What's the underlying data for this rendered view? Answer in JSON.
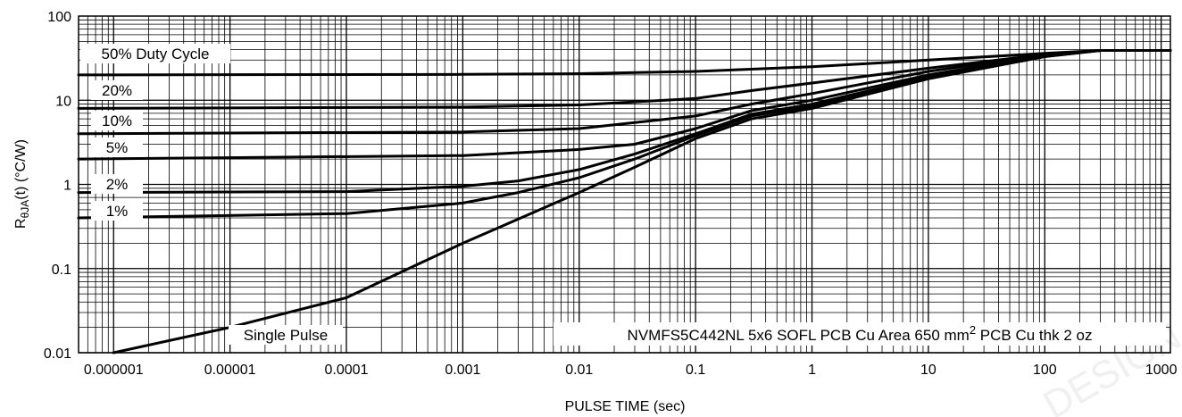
{
  "chart_data": {
    "type": "line",
    "title": "",
    "xlabel": "PULSE TIME (sec)",
    "ylabel_main": "R",
    "ylabel_sub": "θJA",
    "ylabel_rest": "(t) (°C/W)",
    "x_scale": "log",
    "y_scale": "log",
    "xlim": [
      5e-07,
      1200
    ],
    "ylim": [
      0.01,
      100
    ],
    "grid": true,
    "x_ticks": [
      {
        "value": 1e-06,
        "label": "0.000001"
      },
      {
        "value": 1e-05,
        "label": "0.00001"
      },
      {
        "value": 0.0001,
        "label": "0.0001"
      },
      {
        "value": 0.001,
        "label": "0.001"
      },
      {
        "value": 0.01,
        "label": "0.01"
      },
      {
        "value": 0.1,
        "label": "0.1"
      },
      {
        "value": 1,
        "label": "1"
      },
      {
        "value": 10,
        "label": "10"
      },
      {
        "value": 100,
        "label": "100"
      },
      {
        "value": 1000,
        "label": "1000"
      }
    ],
    "y_ticks": [
      {
        "value": 0.01,
        "label": "0.01"
      },
      {
        "value": 0.1,
        "label": "0.1"
      },
      {
        "value": 1,
        "label": "1"
      },
      {
        "value": 10,
        "label": "10"
      },
      {
        "value": 100,
        "label": "100"
      }
    ],
    "series": [
      {
        "name": "50% Duty Cycle",
        "points": [
          [
            5e-07,
            20
          ],
          [
            0.001,
            20.3
          ],
          [
            0.01,
            20.7
          ],
          [
            0.1,
            22
          ],
          [
            1,
            25
          ],
          [
            10,
            30
          ],
          [
            100,
            36
          ],
          [
            300,
            39
          ],
          [
            1200,
            39
          ]
        ]
      },
      {
        "name": "20%",
        "points": [
          [
            5e-07,
            8
          ],
          [
            0.001,
            8.3
          ],
          [
            0.01,
            8.8
          ],
          [
            0.1,
            10.5
          ],
          [
            0.3,
            13
          ],
          [
            1,
            16
          ],
          [
            10,
            24
          ],
          [
            100,
            35
          ],
          [
            300,
            39
          ],
          [
            1200,
            39
          ]
        ]
      },
      {
        "name": "10%",
        "points": [
          [
            5e-07,
            4
          ],
          [
            0.001,
            4.2
          ],
          [
            0.01,
            4.6
          ],
          [
            0.1,
            6.5
          ],
          [
            0.3,
            9
          ],
          [
            1,
            12
          ],
          [
            10,
            22
          ],
          [
            100,
            35
          ],
          [
            300,
            39
          ],
          [
            1200,
            39
          ]
        ]
      },
      {
        "name": "5%",
        "points": [
          [
            5e-07,
            2
          ],
          [
            0.001,
            2.2
          ],
          [
            0.01,
            2.6
          ],
          [
            0.03,
            3
          ],
          [
            0.1,
            4.6
          ],
          [
            0.3,
            7.5
          ],
          [
            1,
            10
          ],
          [
            10,
            20
          ],
          [
            100,
            34
          ],
          [
            300,
            39
          ],
          [
            1200,
            39
          ]
        ]
      },
      {
        "name": "2%",
        "points": [
          [
            5e-07,
            0.8
          ],
          [
            0.0001,
            0.82
          ],
          [
            0.001,
            0.95
          ],
          [
            0.003,
            1.1
          ],
          [
            0.01,
            1.5
          ],
          [
            0.03,
            2.3
          ],
          [
            0.1,
            4
          ],
          [
            0.3,
            6.8
          ],
          [
            1,
            9
          ],
          [
            10,
            19
          ],
          [
            100,
            34
          ],
          [
            300,
            39
          ],
          [
            1200,
            39
          ]
        ]
      },
      {
        "name": "1%",
        "points": [
          [
            5e-07,
            0.4
          ],
          [
            0.0001,
            0.45
          ],
          [
            0.001,
            0.6
          ],
          [
            0.003,
            0.8
          ],
          [
            0.01,
            1.2
          ],
          [
            0.03,
            2
          ],
          [
            0.1,
            3.8
          ],
          [
            0.3,
            6.5
          ],
          [
            1,
            8.5
          ],
          [
            10,
            18
          ],
          [
            100,
            33
          ],
          [
            300,
            39
          ],
          [
            1200,
            39
          ]
        ]
      },
      {
        "name": "Single Pulse",
        "points": [
          [
            1e-06,
            0.01
          ],
          [
            1e-05,
            0.02
          ],
          [
            0.0001,
            0.045
          ],
          [
            0.001,
            0.2
          ],
          [
            0.01,
            0.8
          ],
          [
            0.03,
            1.6
          ],
          [
            0.1,
            3.5
          ],
          [
            0.3,
            6
          ],
          [
            1,
            8
          ],
          [
            10,
            18
          ],
          [
            100,
            33
          ],
          [
            300,
            39
          ],
          [
            1200,
            39
          ]
        ]
      }
    ],
    "annotation": {
      "part": "NVMFS5C442NL 5x6 SOFL PCB Cu Area 650 mm",
      "sup": "2",
      "rest": " PCB Cu thk 2 oz"
    },
    "watermark": "DESIGN"
  }
}
